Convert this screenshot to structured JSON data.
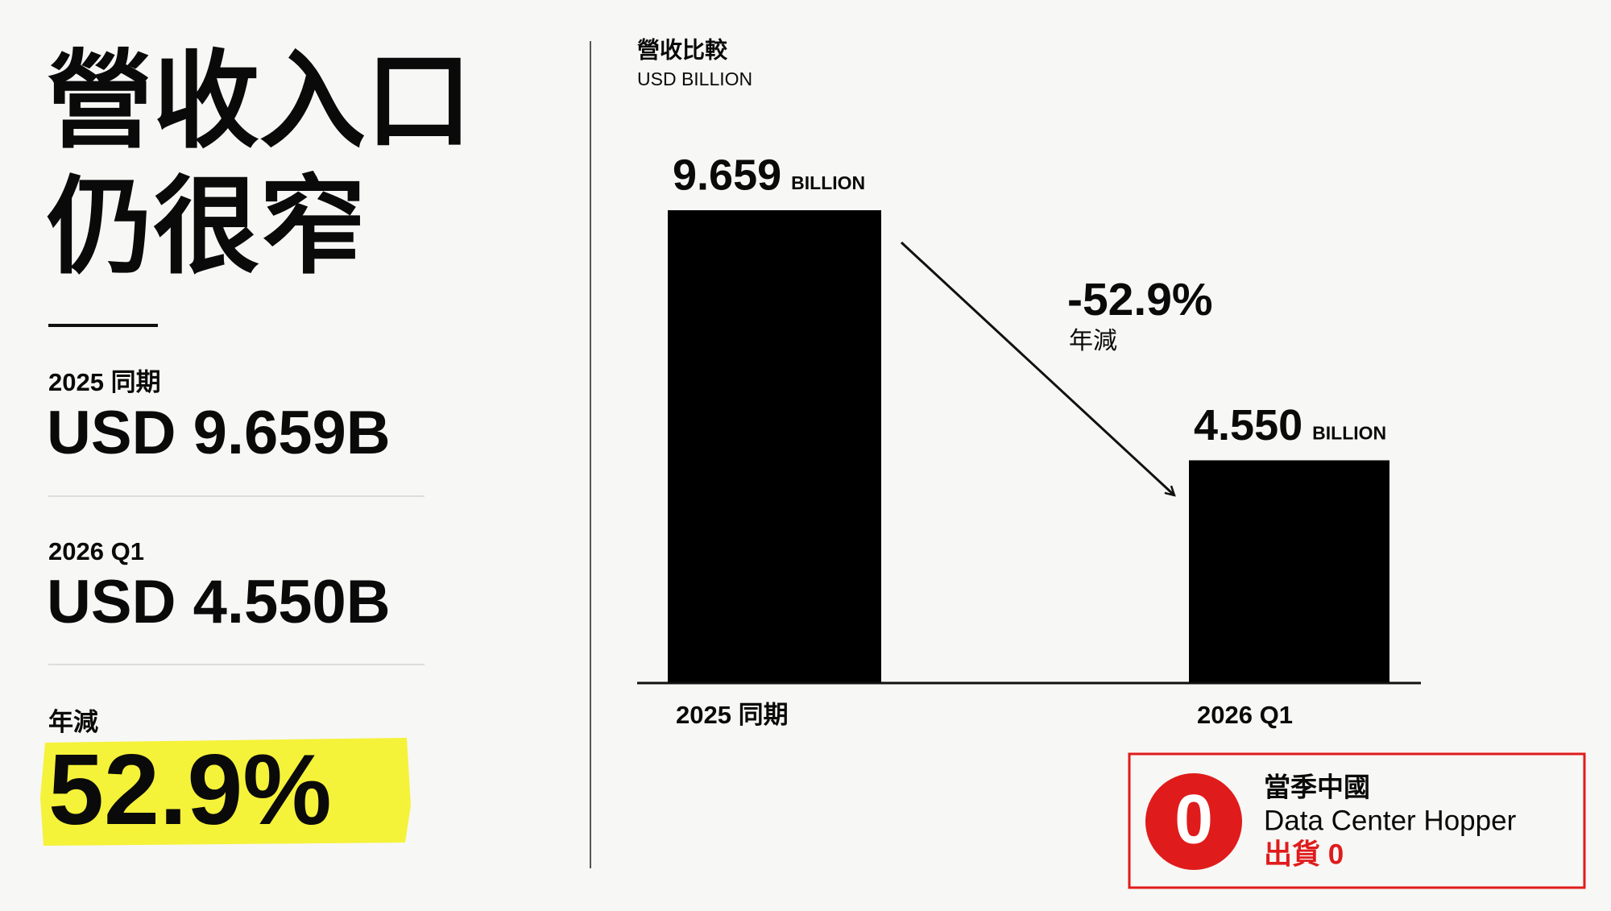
{
  "headline": [
    "營收入口",
    "仍很窄"
  ],
  "stats": [
    {
      "label": "2025 同期",
      "value": "USD 9.659B"
    },
    {
      "label": "2026 Q1",
      "value": "USD 4.550B"
    },
    {
      "label": "年減",
      "value": "52.9%"
    }
  ],
  "chart_data": {
    "type": "bar",
    "title": "營收比較",
    "subtitle": "USD BILLION",
    "categories": [
      "2025 同期",
      "2026 Q1"
    ],
    "values": [
      9.659,
      4.55
    ],
    "value_labels": [
      "9.659",
      "4.550"
    ],
    "unit": "BILLION",
    "color": "#000000",
    "annotation": {
      "text": "-52.9%",
      "label": "年減"
    }
  },
  "callout": {
    "badge": "0",
    "line1": "當季中國",
    "line2": "Data Center Hopper",
    "line3": "出貨 0"
  }
}
